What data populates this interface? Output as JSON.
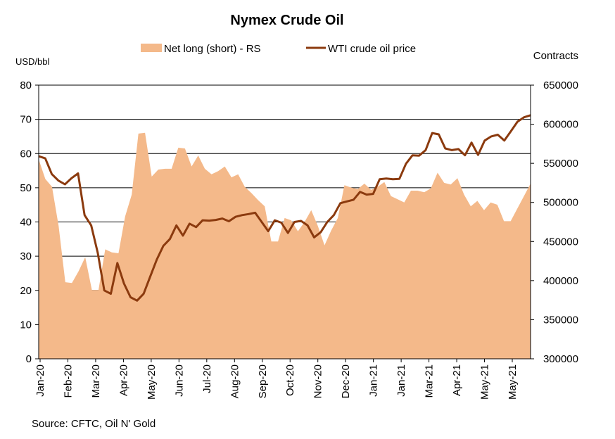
{
  "chart_data": {
    "type": "area",
    "title": "Nymex Crude Oil",
    "left_axis_unit": "USD/bbl",
    "right_axis_unit": "Contracts",
    "source": "Source: CFTC, Oil N' Gold",
    "y_left": {
      "min": 0,
      "max": 80,
      "ticks": [
        "0",
        "10",
        "20",
        "30",
        "40",
        "50",
        "60",
        "70",
        "80"
      ]
    },
    "y_right": {
      "min": 300000,
      "max": 650000,
      "ticks": [
        "300000",
        "350000",
        "400000",
        "450000",
        "500000",
        "550000",
        "600000",
        "650000"
      ]
    },
    "x_tick_labels": [
      "Jan-20",
      "Feb-20",
      "Mar-20",
      "Apr-20",
      "May-20",
      "Jun-20",
      "Jul-20",
      "Aug-20",
      "Sep-20",
      "Oct-20",
      "Nov-20",
      "Dec-20",
      "Jan-21",
      "Jan-21",
      "Mar-21",
      "Apr-21",
      "May-21",
      "May-21"
    ],
    "gridlines": "horizontal",
    "legend_position": "top",
    "series": [
      {
        "name": "Net long (short) - RS",
        "axis": "right",
        "color": "#F4B98A",
        "values": [
          555000,
          530000,
          520000,
          470000,
          398000,
          397000,
          412000,
          430000,
          388000,
          388000,
          440000,
          436000,
          435000,
          482000,
          510000,
          588000,
          589000,
          533000,
          542000,
          543000,
          543000,
          570000,
          569000,
          546000,
          560000,
          543000,
          536000,
          540000,
          546000,
          532000,
          536000,
          520000,
          512000,
          503000,
          495000,
          450000,
          450000,
          480000,
          477000,
          463000,
          475000,
          490000,
          470000,
          445000,
          464000,
          480000,
          522000,
          519000,
          517000,
          524000,
          516000,
          520000,
          526000,
          508000,
          504000,
          500000,
          515000,
          515000,
          513000,
          518000,
          538000,
          525000,
          523000,
          531000,
          510000,
          495000,
          502000,
          490000,
          500000,
          497000,
          476000,
          476000,
          492000,
          508000,
          524000
        ]
      },
      {
        "name": "WTI crude oil price",
        "axis": "left",
        "color": "#8B3A0E",
        "values": [
          59.2,
          58.6,
          54.0,
          52.1,
          51.0,
          52.8,
          54.2,
          42.0,
          39.0,
          31.0,
          20.0,
          19.0,
          28.0,
          22.0,
          18.0,
          17.0,
          19.0,
          24.0,
          29.0,
          33.0,
          35.0,
          39.0,
          36.0,
          39.5,
          38.5,
          40.5,
          40.4,
          40.6,
          41.0,
          40.2,
          41.5,
          42.0,
          42.3,
          42.7,
          40.0,
          37.3,
          40.5,
          39.8,
          36.8,
          40.0,
          40.3,
          39.0,
          35.5,
          37.0,
          40.0,
          42.0,
          45.5,
          46.0,
          46.5,
          48.8,
          48.0,
          48.2,
          52.5,
          52.7,
          52.5,
          52.6,
          57.0,
          59.5,
          59.4,
          61.0,
          66.0,
          65.6,
          61.5,
          61.0,
          61.3,
          59.5,
          63.2,
          59.6,
          63.8,
          65.0,
          65.5,
          63.8,
          66.5,
          69.3,
          70.6,
          71.2
        ]
      }
    ]
  }
}
